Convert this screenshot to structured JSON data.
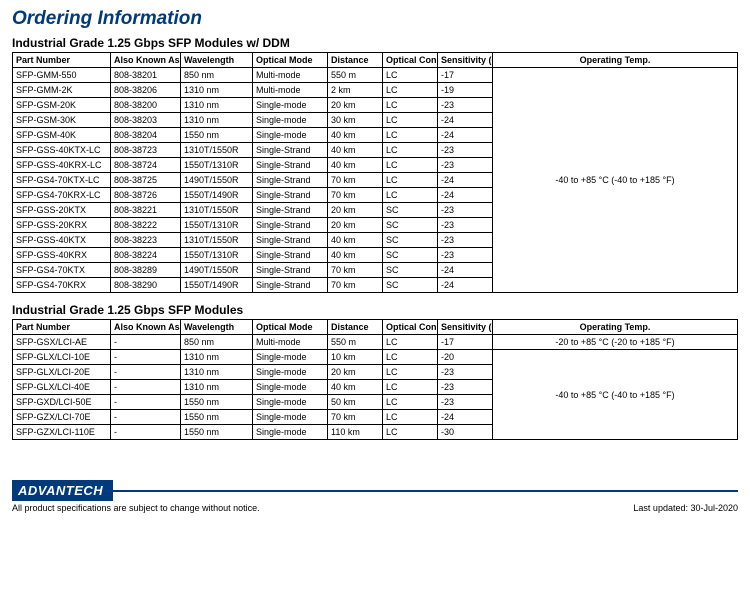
{
  "heading": "Ordering Information",
  "table1": {
    "title": "Industrial Grade 1.25 Gbps SFP Modules  w/ DDM",
    "headers": {
      "part": "Part Number",
      "aka": "Also Known As",
      "wl": "Wavelength",
      "mode": "Optical Mode",
      "dist": "Distance",
      "conn": "Optical Connector",
      "sens": "Sensitivity (dB)",
      "temp": "Operating Temp."
    },
    "temp_merged": "-40 to +85 °C (-40 to +185 °F)",
    "rows": [
      {
        "part": "SFP-GMM-550",
        "aka": "808-38201",
        "wl": "850 nm",
        "mode": "Multi-mode",
        "dist": "550 m",
        "conn": "LC",
        "sens": "-17"
      },
      {
        "part": "SFP-GMM-2K",
        "aka": "808-38206",
        "wl": "1310 nm",
        "mode": "Multi-mode",
        "dist": "2 km",
        "conn": "LC",
        "sens": "-19"
      },
      {
        "part": "SFP-GSM-20K",
        "aka": "808-38200",
        "wl": "1310 nm",
        "mode": "Single-mode",
        "dist": "20 km",
        "conn": "LC",
        "sens": "-23"
      },
      {
        "part": "SFP-GSM-30K",
        "aka": "808-38203",
        "wl": "1310 nm",
        "mode": "Single-mode",
        "dist": "30 km",
        "conn": "LC",
        "sens": "-24"
      },
      {
        "part": "SFP-GSM-40K",
        "aka": "808-38204",
        "wl": "1550 nm",
        "mode": "Single-mode",
        "dist": "40 km",
        "conn": "LC",
        "sens": "-24"
      },
      {
        "part": "SFP-GSS-40KTX-LC",
        "aka": "808-38723",
        "wl": "1310T/1550R",
        "mode": "Single-Strand",
        "dist": "40 km",
        "conn": "LC",
        "sens": "-23"
      },
      {
        "part": "SFP-GSS-40KRX-LC",
        "aka": "808-38724",
        "wl": "1550T/1310R",
        "mode": "Single-Strand",
        "dist": "40 km",
        "conn": "LC",
        "sens": "-23"
      },
      {
        "part": "SFP-GS4-70KTX-LC",
        "aka": "808-38725",
        "wl": "1490T/1550R",
        "mode": "Single-Strand",
        "dist": "70 km",
        "conn": "LC",
        "sens": "-24"
      },
      {
        "part": "SFP-GS4-70KRX-LC",
        "aka": "808-38726",
        "wl": "1550T/1490R",
        "mode": "Single-Strand",
        "dist": "70 km",
        "conn": "LC",
        "sens": "-24"
      },
      {
        "part": "SFP-GSS-20KTX",
        "aka": "808-38221",
        "wl": "1310T/1550R",
        "mode": "Single-Strand",
        "dist": "20 km",
        "conn": "SC",
        "sens": "-23"
      },
      {
        "part": "SFP-GSS-20KRX",
        "aka": "808-38222",
        "wl": "1550T/1310R",
        "mode": "Single-Strand",
        "dist": "20 km",
        "conn": "SC",
        "sens": "-23"
      },
      {
        "part": "SFP-GSS-40KTX",
        "aka": "808-38223",
        "wl": "1310T/1550R",
        "mode": "Single-Strand",
        "dist": "40 km",
        "conn": "SC",
        "sens": "-23"
      },
      {
        "part": "SFP-GSS-40KRX",
        "aka": "808-38224",
        "wl": "1550T/1310R",
        "mode": "Single-Strand",
        "dist": "40 km",
        "conn": "SC",
        "sens": "-23"
      },
      {
        "part": "SFP-GS4-70KTX",
        "aka": "808-38289",
        "wl": "1490T/1550R",
        "mode": "Single-Strand",
        "dist": "70 km",
        "conn": "SC",
        "sens": "-24"
      },
      {
        "part": "SFP-GS4-70KRX",
        "aka": "808-38290",
        "wl": "1550T/1490R",
        "mode": "Single-Strand",
        "dist": "70 km",
        "conn": "SC",
        "sens": "-24"
      }
    ]
  },
  "table2": {
    "title": "Industrial Grade 1.25 Gbps SFP Modules",
    "headers": {
      "part": "Part Number",
      "aka": "Also Known As",
      "wl": "Wavelength",
      "mode": "Optical Mode",
      "dist": "Distance",
      "conn": "Optical Connector",
      "sens": "Sensitivity (dB)",
      "temp": "Operating Temp."
    },
    "temp_row1": "-20 to +85 °C (-20 to +185 °F)",
    "temp_merged": "-40 to +85 °C (-40 to +185 °F)",
    "rows": [
      {
        "part": "SFP-GSX/LCI-AE",
        "aka": "-",
        "wl": "850 nm",
        "mode": "Multi-mode",
        "dist": "550 m",
        "conn": "LC",
        "sens": "-17"
      },
      {
        "part": "SFP-GLX/LCI-10E",
        "aka": "-",
        "wl": "1310 nm",
        "mode": "Single-mode",
        "dist": "10 km",
        "conn": "LC",
        "sens": "-20"
      },
      {
        "part": "SFP-GLX/LCI-20E",
        "aka": "-",
        "wl": "1310 nm",
        "mode": "Single-mode",
        "dist": "20 km",
        "conn": "LC",
        "sens": "-23"
      },
      {
        "part": "SFP-GLX/LCI-40E",
        "aka": "-",
        "wl": "1310 nm",
        "mode": "Single-mode",
        "dist": "40 km",
        "conn": "LC",
        "sens": "-23"
      },
      {
        "part": "SFP-GXD/LCI-50E",
        "aka": "-",
        "wl": "1550 nm",
        "mode": "Single-mode",
        "dist": "50 km",
        "conn": "LC",
        "sens": "-23"
      },
      {
        "part": "SFP-GZX/LCI-70E",
        "aka": "-",
        "wl": "1550 nm",
        "mode": "Single-mode",
        "dist": "70 km",
        "conn": "LC",
        "sens": "-24"
      },
      {
        "part": "SFP-GZX/LCI-110E",
        "aka": "-",
        "wl": "1550 nm",
        "mode": "Single-mode",
        "dist": "110 km",
        "conn": "LC",
        "sens": "-30"
      }
    ]
  },
  "footer": {
    "brand": "ADVANTECH",
    "note": "All product specifications are subject to change without notice.",
    "updated": "Last updated: 30-Jul-2020"
  }
}
